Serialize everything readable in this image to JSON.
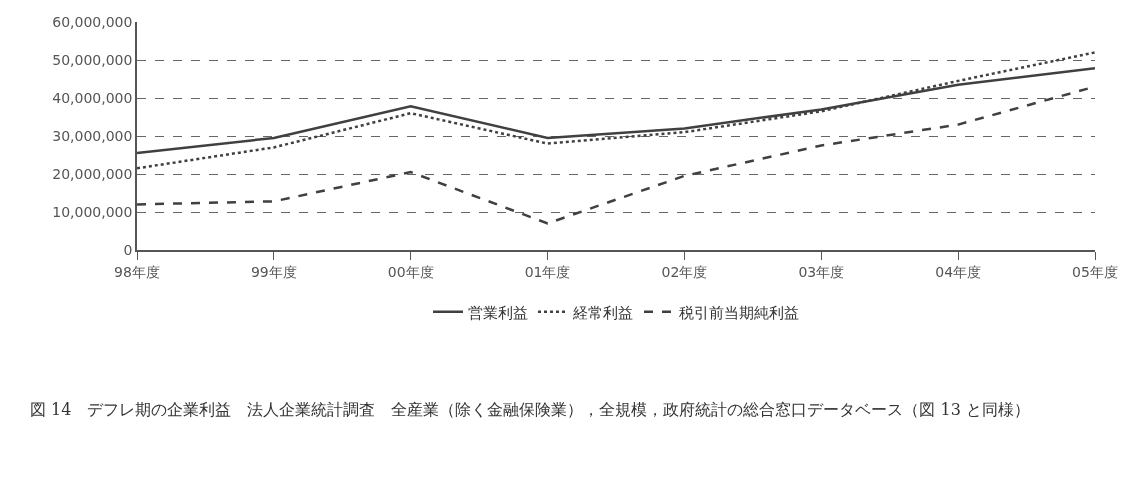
{
  "chart_data": {
    "type": "line",
    "categories": [
      "98年度",
      "99年度",
      "00年度",
      "01年度",
      "02年度",
      "03年度",
      "04年度",
      "05年度"
    ],
    "series": [
      {
        "name": "営業利益",
        "color": "#404040",
        "line_style": "solid",
        "values": [
          25500000,
          29500000,
          37800000,
          29500000,
          32000000,
          37000000,
          43500000,
          47800000
        ]
      },
      {
        "name": "経常利益",
        "color": "#404040",
        "line_style": "dotted",
        "values": [
          21500000,
          27000000,
          36000000,
          28000000,
          31000000,
          36500000,
          44500000,
          52000000
        ]
      },
      {
        "name": "税引前当期純利益",
        "color": "#404040",
        "line_style": "dashed",
        "values": [
          12000000,
          12800000,
          20500000,
          7000000,
          19500000,
          27500000,
          33000000,
          43000000
        ]
      }
    ],
    "ylim": [
      0,
      60000000
    ],
    "yticks": [
      {
        "value": 0,
        "label": "0"
      },
      {
        "value": 10000000,
        "label": "10,000,000"
      },
      {
        "value": 20000000,
        "label": "20,000,000"
      },
      {
        "value": 30000000,
        "label": "30,000,000"
      },
      {
        "value": 40000000,
        "label": "40,000,000"
      },
      {
        "value": 50000000,
        "label": "50,000,000"
      },
      {
        "value": 60000000,
        "label": "60,000,000"
      }
    ],
    "grid": "y",
    "legend": "bottom",
    "marker": "none",
    "annotations": [
      "図 14　デフレ期の企業利益　法人企業統計調査　全産業（除く金融保険業），全規模，政府統計の総合窓口データベース（図 13 と同様）"
    ]
  }
}
